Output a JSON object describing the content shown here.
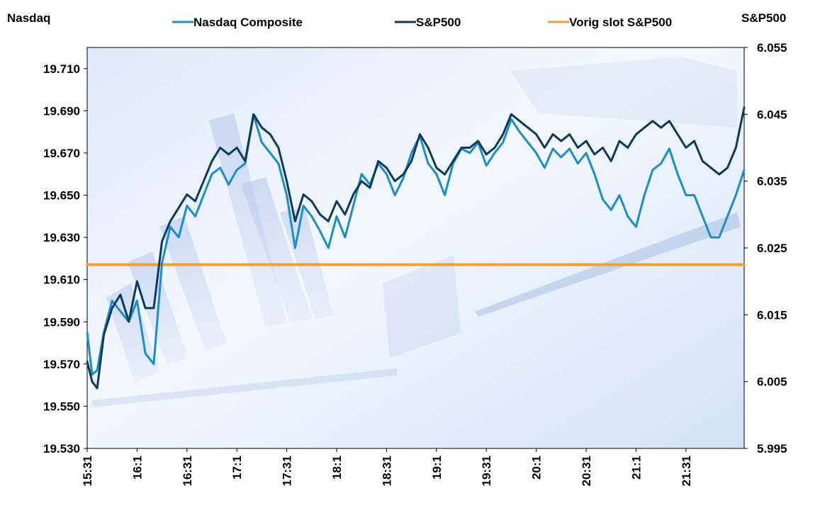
{
  "chart_data": {
    "type": "line",
    "left_axis_title": "Nasdaq",
    "right_axis_title": "S&P500",
    "left_ylim": [
      19530,
      19720
    ],
    "right_ylim": [
      5995,
      6055
    ],
    "left_ticks": [
      "19.530",
      "19.550",
      "19.570",
      "19.590",
      "19.610",
      "19.630",
      "19.650",
      "19.670",
      "19.690",
      "19.710"
    ],
    "right_ticks": [
      "5.995",
      "6.005",
      "6.015",
      "6.025",
      "6.035",
      "6.045",
      "6.055"
    ],
    "x_ticks": [
      "15:31",
      "16:1",
      "16:31",
      "17:1",
      "17:31",
      "18:1",
      "18:31",
      "19:1",
      "19:31",
      "20:1",
      "20:31",
      "21:1",
      "21:31"
    ],
    "x_range": [
      0,
      395
    ],
    "colors": {
      "nasdaq": "#1a8fc7",
      "sp500": "#0d3a5c",
      "prev_close": "#f0a030"
    },
    "series": [
      {
        "name": "Nasdaq Composite",
        "axis": "left",
        "x": [
          0,
          3,
          6,
          10,
          15,
          20,
          25,
          30,
          35,
          40,
          45,
          50,
          55,
          60,
          65,
          70,
          75,
          80,
          85,
          90,
          95,
          100,
          105,
          110,
          115,
          120,
          125,
          130,
          135,
          140,
          145,
          150,
          155,
          160,
          165,
          170,
          175,
          180,
          185,
          190,
          195,
          200,
          205,
          210,
          215,
          220,
          225,
          230,
          235,
          240,
          245,
          250,
          255,
          260,
          265,
          270,
          275,
          280,
          285,
          290,
          295,
          300,
          305,
          310,
          315,
          320,
          325,
          330,
          335,
          340,
          345,
          350,
          355,
          360,
          365,
          370,
          375,
          380,
          385,
          390,
          395
        ],
        "values": [
          19585,
          19565,
          19567,
          19585,
          19600,
          19595,
          19590,
          19600,
          19575,
          19570,
          19618,
          19635,
          19630,
          19645,
          19640,
          19650,
          19660,
          19663,
          19655,
          19662,
          19665,
          19688,
          19675,
          19670,
          19665,
          19650,
          19625,
          19645,
          19640,
          19633,
          19625,
          19640,
          19630,
          19645,
          19660,
          19655,
          19665,
          19660,
          19650,
          19658,
          19670,
          19678,
          19665,
          19660,
          19650,
          19665,
          19672,
          19670,
          19675,
          19664,
          19670,
          19675,
          19686,
          19680,
          19675,
          19670,
          19663,
          19672,
          19668,
          19672,
          19665,
          19670,
          19660,
          19648,
          19643,
          19650,
          19640,
          19635,
          19650,
          19662,
          19665,
          19672,
          19660,
          19650,
          19650,
          19640,
          19630,
          19630,
          19640,
          19650,
          19662
        ]
      },
      {
        "name": "S&P500",
        "axis": "right",
        "x": [
          0,
          3,
          6,
          10,
          15,
          20,
          25,
          30,
          35,
          40,
          45,
          50,
          55,
          60,
          65,
          70,
          75,
          80,
          85,
          90,
          95,
          100,
          105,
          110,
          115,
          120,
          125,
          130,
          135,
          140,
          145,
          150,
          155,
          160,
          165,
          170,
          175,
          180,
          185,
          190,
          195,
          200,
          205,
          210,
          215,
          220,
          225,
          230,
          235,
          240,
          245,
          250,
          255,
          260,
          265,
          270,
          275,
          280,
          285,
          290,
          295,
          300,
          305,
          310,
          315,
          320,
          325,
          330,
          335,
          340,
          345,
          350,
          355,
          360,
          365,
          370,
          375,
          380,
          385,
          390,
          395
        ],
        "values": [
          6008,
          6005,
          6004,
          6012,
          6016,
          6018,
          6014,
          6020,
          6016,
          6016,
          6026,
          6029,
          6031,
          6033,
          6032,
          6035,
          6038,
          6040,
          6039,
          6040,
          6038,
          6045,
          6043,
          6042,
          6040,
          6035,
          6029,
          6033,
          6032,
          6030,
          6029,
          6032,
          6030,
          6033,
          6035,
          6034,
          6038,
          6037,
          6035,
          6036,
          6038,
          6042,
          6040,
          6037,
          6036,
          6038,
          6040,
          6040,
          6041,
          6039,
          6040,
          6042,
          6045,
          6044,
          6043,
          6042,
          6040,
          6042,
          6041,
          6042,
          6040,
          6041,
          6039,
          6040,
          6038,
          6041,
          6040,
          6042,
          6043,
          6044,
          6043,
          6044,
          6042,
          6040,
          6041,
          6038,
          6037,
          6036,
          6037,
          6040,
          6046
        ]
      },
      {
        "name": "Vorig slot S&P500",
        "axis": "right",
        "x": [
          0,
          395
        ],
        "values": [
          6022.5,
          6022.5
        ]
      }
    ],
    "legend_position": "top"
  }
}
